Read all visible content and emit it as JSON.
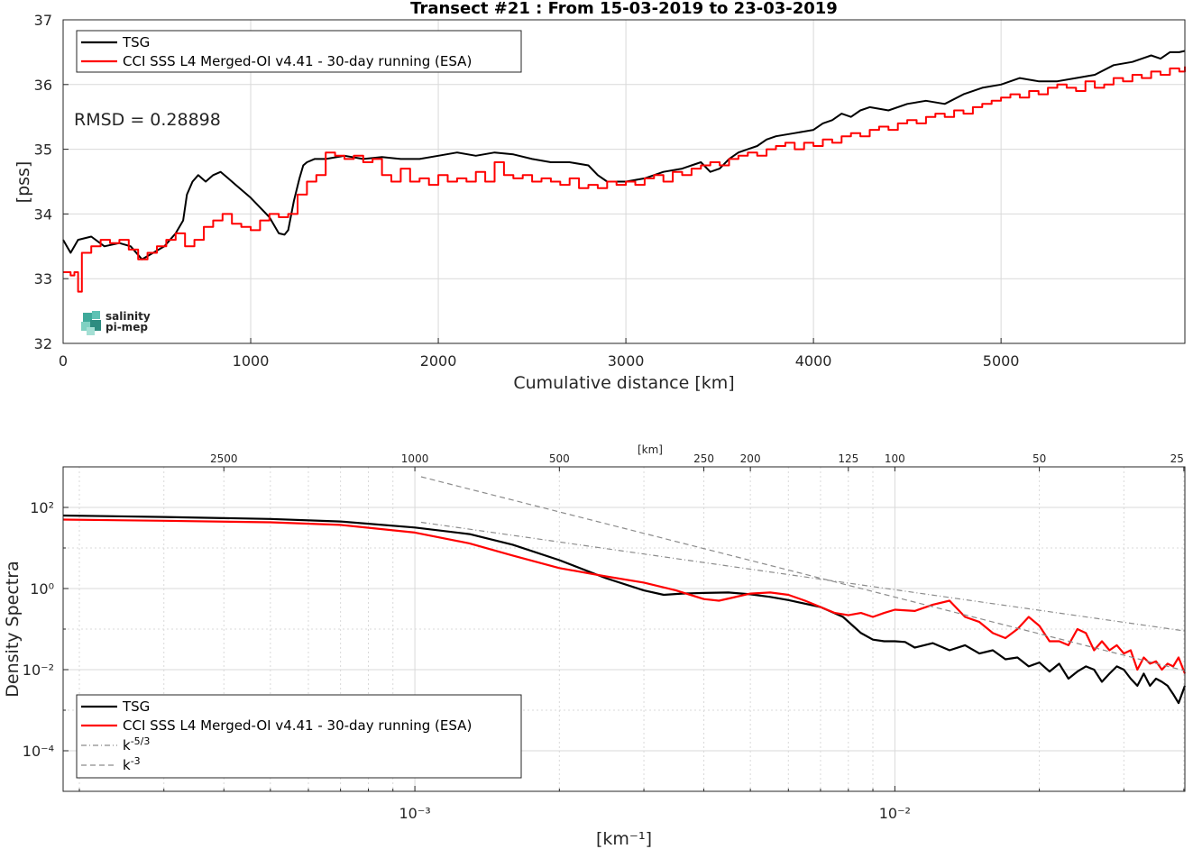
{
  "chart_data": [
    {
      "type": "line",
      "title": "Transect #21 : From 15-03-2019 to 23-03-2019",
      "xlabel": "Cumulative distance [km]",
      "ylabel": "[pss]",
      "xlim": [
        0,
        5980
      ],
      "ylim": [
        32,
        37
      ],
      "xticks": [
        "0",
        "1000",
        "2000",
        "3000",
        "4000",
        "5000"
      ],
      "yticks": [
        "32",
        "33",
        "34",
        "35",
        "36",
        "37"
      ],
      "grid": true,
      "legend_position": "top-left",
      "annotation": "RMSD = 0.28898",
      "logo": {
        "line1": "salinity",
        "line2": "pi-mep"
      },
      "series": [
        {
          "name": "TSG",
          "color": "#000000",
          "x": [
            0,
            40,
            80,
            150,
            220,
            300,
            360,
            420,
            480,
            540,
            600,
            640,
            660,
            690,
            720,
            760,
            800,
            840,
            880,
            920,
            960,
            1000,
            1050,
            1100,
            1150,
            1180,
            1200,
            1230,
            1260,
            1280,
            1300,
            1340,
            1400,
            1500,
            1600,
            1700,
            1800,
            1900,
            2000,
            2100,
            2200,
            2300,
            2400,
            2500,
            2600,
            2700,
            2800,
            2850,
            2900,
            3000,
            3100,
            3200,
            3300,
            3350,
            3400,
            3450,
            3500,
            3550,
            3600,
            3650,
            3700,
            3750,
            3800,
            3900,
            4000,
            4050,
            4100,
            4150,
            4200,
            4250,
            4300,
            4400,
            4500,
            4600,
            4700,
            4800,
            4900,
            5000,
            5100,
            5200,
            5300,
            5400,
            5500,
            5600,
            5700,
            5800,
            5850,
            5900,
            5950,
            5980
          ],
          "y": [
            33.6,
            33.4,
            33.6,
            33.65,
            33.5,
            33.55,
            33.5,
            33.3,
            33.4,
            33.5,
            33.7,
            33.9,
            34.3,
            34.5,
            34.6,
            34.5,
            34.6,
            34.65,
            34.55,
            34.45,
            34.35,
            34.25,
            34.1,
            33.95,
            33.7,
            33.68,
            33.75,
            34.2,
            34.55,
            34.75,
            34.8,
            34.85,
            34.85,
            34.9,
            34.85,
            34.88,
            34.85,
            34.85,
            34.9,
            34.95,
            34.9,
            34.95,
            34.92,
            34.85,
            34.8,
            34.8,
            34.75,
            34.6,
            34.5,
            34.5,
            34.55,
            34.65,
            34.7,
            34.75,
            34.8,
            34.65,
            34.7,
            34.85,
            34.95,
            35.0,
            35.05,
            35.15,
            35.2,
            35.25,
            35.3,
            35.4,
            35.45,
            35.55,
            35.5,
            35.6,
            35.65,
            35.6,
            35.7,
            35.75,
            35.7,
            35.85,
            35.95,
            36.0,
            36.1,
            36.05,
            36.05,
            36.1,
            36.15,
            36.3,
            36.35,
            36.45,
            36.4,
            36.5,
            36.5,
            36.52
          ]
        },
        {
          "name": "CCI SSS L4 Merged-OI v4.41 - 30-day running (ESA)",
          "color": "#ff0000",
          "x": [
            0,
            40,
            60,
            80,
            100,
            150,
            200,
            250,
            300,
            350,
            400,
            450,
            500,
            550,
            600,
            650,
            700,
            750,
            800,
            850,
            900,
            950,
            1000,
            1050,
            1100,
            1150,
            1200,
            1250,
            1300,
            1350,
            1400,
            1450,
            1500,
            1550,
            1600,
            1650,
            1700,
            1750,
            1800,
            1850,
            1900,
            1950,
            2000,
            2050,
            2100,
            2150,
            2200,
            2250,
            2300,
            2350,
            2400,
            2450,
            2500,
            2550,
            2600,
            2650,
            2700,
            2750,
            2800,
            2850,
            2900,
            2950,
            3000,
            3050,
            3100,
            3150,
            3200,
            3250,
            3300,
            3350,
            3400,
            3450,
            3500,
            3550,
            3600,
            3650,
            3700,
            3750,
            3800,
            3850,
            3900,
            3950,
            4000,
            4050,
            4100,
            4150,
            4200,
            4250,
            4300,
            4350,
            4400,
            4450,
            4500,
            4550,
            4600,
            4650,
            4700,
            4750,
            4800,
            4850,
            4900,
            4950,
            5000,
            5050,
            5100,
            5150,
            5200,
            5250,
            5300,
            5350,
            5400,
            5450,
            5500,
            5550,
            5600,
            5650,
            5700,
            5750,
            5800,
            5850,
            5900,
            5950,
            5980
          ],
          "y": [
            33.1,
            33.05,
            33.1,
            32.8,
            33.4,
            33.5,
            33.6,
            33.55,
            33.6,
            33.45,
            33.3,
            33.4,
            33.5,
            33.6,
            33.7,
            33.5,
            33.6,
            33.8,
            33.9,
            34.0,
            33.85,
            33.8,
            33.75,
            33.9,
            34.0,
            33.95,
            34.0,
            34.3,
            34.5,
            34.6,
            34.95,
            34.9,
            34.85,
            34.9,
            34.8,
            34.85,
            34.6,
            34.5,
            34.7,
            34.5,
            34.55,
            34.45,
            34.6,
            34.5,
            34.55,
            34.5,
            34.65,
            34.5,
            34.8,
            34.6,
            34.55,
            34.6,
            34.5,
            34.55,
            34.5,
            34.45,
            34.55,
            34.4,
            34.45,
            34.4,
            34.5,
            34.45,
            34.5,
            34.45,
            34.55,
            34.6,
            34.5,
            34.65,
            34.6,
            34.7,
            34.75,
            34.8,
            34.75,
            34.85,
            34.9,
            34.95,
            34.9,
            35.0,
            35.05,
            35.1,
            35.0,
            35.1,
            35.05,
            35.15,
            35.1,
            35.2,
            35.25,
            35.2,
            35.3,
            35.35,
            35.3,
            35.4,
            35.45,
            35.4,
            35.5,
            35.55,
            35.5,
            35.6,
            35.55,
            35.65,
            35.7,
            35.75,
            35.8,
            35.85,
            35.8,
            35.9,
            35.85,
            35.95,
            36.0,
            35.95,
            35.9,
            36.05,
            35.95,
            36.0,
            36.1,
            36.05,
            36.15,
            36.1,
            36.2,
            36.15,
            36.25,
            36.2,
            36.28
          ]
        }
      ]
    },
    {
      "type": "line",
      "title": "",
      "xlabel": "[km⁻¹]",
      "ylabel": "Density Spectra",
      "top_xlabel": "[km]",
      "xscale": "log",
      "yscale": "log",
      "xlim": [
        0.000185,
        0.0402
      ],
      "ylim": [
        1e-05,
        1000
      ],
      "xticks": [
        "10⁻³",
        "10⁻²"
      ],
      "yticks": [
        "10²",
        "10⁰",
        "10⁻²",
        "10⁻⁴"
      ],
      "top_xticks": [
        "2500",
        "1000",
        "500",
        "250",
        "200",
        "125",
        "100",
        "50",
        "25"
      ],
      "grid": true,
      "legend_position": "bottom-left",
      "series": [
        {
          "name": "TSG",
          "color": "#000000",
          "x": [
            0.000185,
            0.0003,
            0.0005,
            0.0007,
            0.001,
            0.0013,
            0.0016,
            0.002,
            0.0025,
            0.003,
            0.0033,
            0.0036,
            0.004,
            0.0045,
            0.005,
            0.0055,
            0.006,
            0.007,
            0.0078,
            0.0085,
            0.009,
            0.0095,
            0.01,
            0.0105,
            0.011,
            0.012,
            0.013,
            0.014,
            0.015,
            0.016,
            0.017,
            0.018,
            0.019,
            0.02,
            0.021,
            0.022,
            0.023,
            0.024,
            0.025,
            0.026,
            0.027,
            0.028,
            0.029,
            0.03,
            0.031,
            0.032,
            0.033,
            0.034,
            0.035,
            0.036,
            0.037,
            0.038,
            0.039,
            0.0402
          ],
          "y": [
            63,
            58,
            52,
            45,
            32,
            22,
            12,
            5,
            1.8,
            0.9,
            0.7,
            0.75,
            0.78,
            0.8,
            0.72,
            0.62,
            0.52,
            0.35,
            0.2,
            0.08,
            0.055,
            0.05,
            0.05,
            0.048,
            0.035,
            0.045,
            0.03,
            0.04,
            0.025,
            0.03,
            0.018,
            0.02,
            0.012,
            0.015,
            0.009,
            0.014,
            0.006,
            0.009,
            0.012,
            0.01,
            0.005,
            0.008,
            0.012,
            0.01,
            0.006,
            0.004,
            0.008,
            0.004,
            0.006,
            0.005,
            0.004,
            0.0025,
            0.0015,
            0.004
          ]
        },
        {
          "name": "CCI SSS L4 Merged-OI v4.41 - 30-day running (ESA)",
          "color": "#ff0000",
          "x": [
            0.000185,
            0.0003,
            0.0005,
            0.0007,
            0.001,
            0.0013,
            0.0016,
            0.002,
            0.0025,
            0.003,
            0.0035,
            0.004,
            0.0043,
            0.0046,
            0.005,
            0.0055,
            0.006,
            0.0065,
            0.007,
            0.0075,
            0.008,
            0.0085,
            0.009,
            0.0095,
            0.01,
            0.011,
            0.012,
            0.013,
            0.014,
            0.015,
            0.016,
            0.017,
            0.018,
            0.019,
            0.02,
            0.021,
            0.022,
            0.023,
            0.024,
            0.025,
            0.026,
            0.027,
            0.028,
            0.029,
            0.03,
            0.031,
            0.032,
            0.033,
            0.034,
            0.035,
            0.036,
            0.037,
            0.038,
            0.039,
            0.0402
          ],
          "y": [
            50,
            47,
            43,
            37,
            24,
            13,
            6.5,
            3.2,
            2.0,
            1.4,
            0.9,
            0.55,
            0.5,
            0.6,
            0.75,
            0.8,
            0.7,
            0.5,
            0.35,
            0.25,
            0.22,
            0.25,
            0.2,
            0.25,
            0.3,
            0.28,
            0.4,
            0.5,
            0.2,
            0.15,
            0.08,
            0.06,
            0.1,
            0.2,
            0.12,
            0.05,
            0.05,
            0.04,
            0.1,
            0.08,
            0.03,
            0.05,
            0.03,
            0.04,
            0.025,
            0.03,
            0.01,
            0.02,
            0.014,
            0.016,
            0.01,
            0.014,
            0.012,
            0.02,
            0.008
          ]
        },
        {
          "name": "k-5/3",
          "color": "#8c8c8c",
          "dash": "dashdot",
          "x": [
            0.00103,
            0.0402
          ],
          "y": [
            43,
            0.09
          ]
        },
        {
          "name": "k-3",
          "color": "#8c8c8c",
          "dash": "dashed",
          "x": [
            0.00103,
            0.0402
          ],
          "y": [
            570,
            0.0094
          ]
        }
      ],
      "legend_entries": [
        {
          "base": "TSG",
          "sup": ""
        },
        {
          "base": "CCI SSS L4 Merged-OI v4.41 - 30-day running (ESA)",
          "sup": ""
        },
        {
          "base": "k",
          "sup": "-5/3"
        },
        {
          "base": "k",
          "sup": "-3"
        }
      ]
    }
  ]
}
